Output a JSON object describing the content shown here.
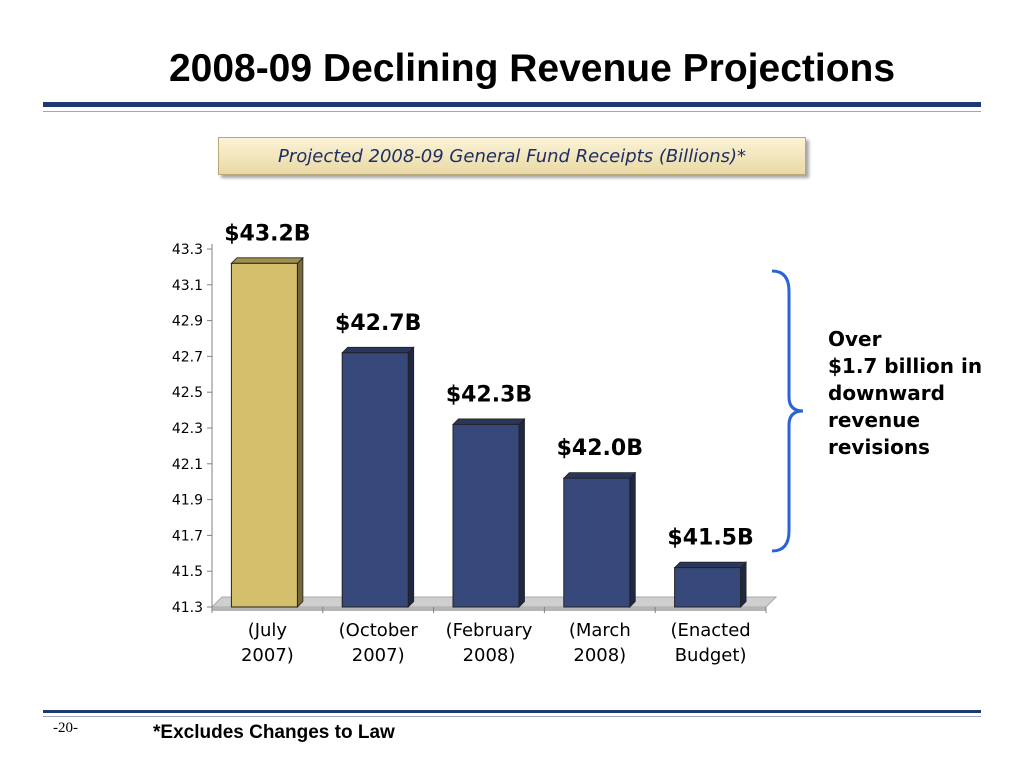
{
  "title": "2008-09 Declining Revenue Projections",
  "subtitle": "Projected 2008-09 General Fund Receipts (Billions)*",
  "footnote": "*Excludes Changes to Law",
  "page_number": "-20-",
  "annotation": {
    "lines": [
      "Over",
      "$1.7 billion in",
      "downward",
      "revenue",
      "revisions"
    ]
  },
  "colors": {
    "rule": "#1c3a70",
    "bar_primary": "#d4bf6c",
    "bar_series": "#36497a",
    "brace": "#2a64d4",
    "subtitle_text": "#1f2f66"
  },
  "chart_data": {
    "type": "bar",
    "categories": [
      [
        "(July",
        "2007)"
      ],
      [
        "(October",
        "2007)"
      ],
      [
        "(February",
        "2008)"
      ],
      [
        "(March",
        "2008)"
      ],
      [
        "(Enacted",
        "Budget)"
      ]
    ],
    "values": [
      43.22,
      42.72,
      42.32,
      42.02,
      41.52
    ],
    "data_labels": [
      "$43.2B",
      "$42.7B",
      "$42.3B",
      "$42.0B",
      "$41.5B"
    ],
    "yticks": [
      "41.3",
      "41.5",
      "41.7",
      "41.9",
      "42.1",
      "42.3",
      "42.5",
      "42.7",
      "42.9",
      "43.1",
      "43.3"
    ],
    "ylim": [
      41.3,
      43.3
    ],
    "style": "3d-column",
    "grid": false,
    "legend": "none"
  }
}
